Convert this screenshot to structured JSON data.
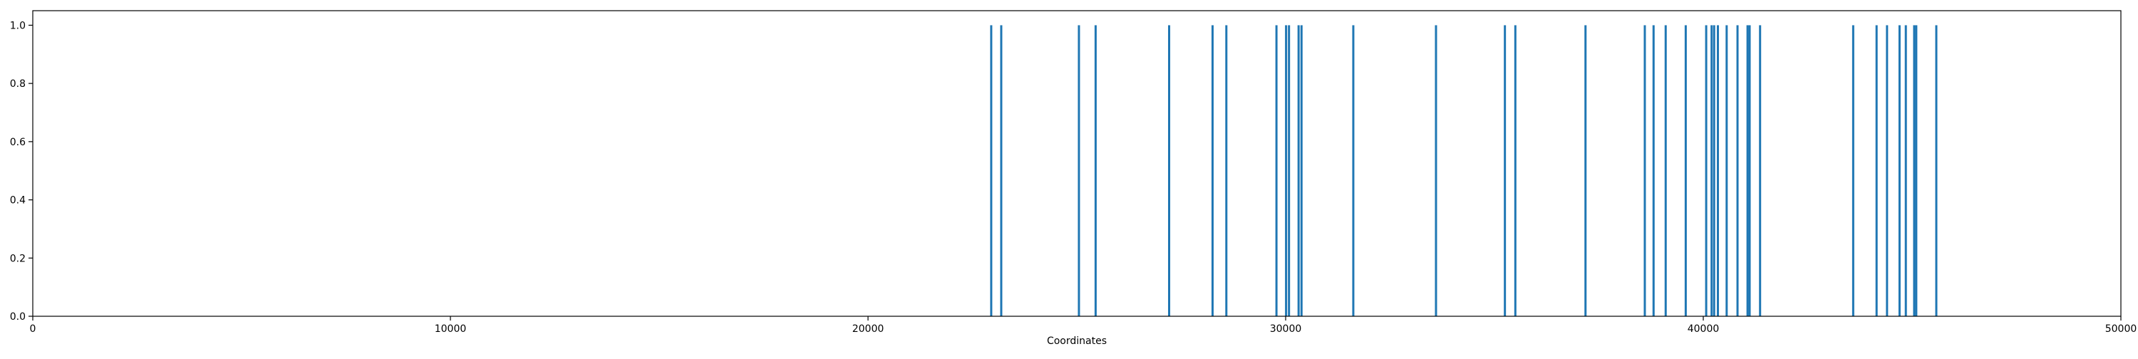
{
  "chart_data": {
    "type": "bar",
    "title": "",
    "xlabel": "Coordinates",
    "ylabel": "",
    "xlim": [
      0,
      50000
    ],
    "ylim": [
      0.0,
      1.05
    ],
    "x_ticks": [
      0,
      10000,
      20000,
      30000,
      40000,
      50000
    ],
    "x_tick_labels": [
      "0",
      "10000",
      "20000",
      "30000",
      "40000",
      "50000"
    ],
    "y_ticks": [
      0.0,
      0.2,
      0.4,
      0.6,
      0.8,
      1.0
    ],
    "y_tick_labels": [
      "0.0",
      "0.2",
      "0.4",
      "0.6",
      "0.8",
      "1.0"
    ],
    "grid": false,
    "color": "#1f77b4",
    "x": [
      22950,
      23190,
      25050,
      25450,
      27210,
      28250,
      28580,
      29780,
      30010,
      30080,
      30310,
      30380,
      31620,
      33600,
      35250,
      35500,
      37180,
      38600,
      38810,
      39100,
      39580,
      40070,
      40200,
      40260,
      40350,
      40560,
      40820,
      41060,
      41110,
      41360,
      43590,
      44150,
      44400,
      44700,
      44850,
      45050,
      45100,
      45580
    ],
    "values": [
      1,
      1,
      1,
      1,
      1,
      1,
      1,
      1,
      1,
      1,
      1,
      1,
      1,
      1,
      1,
      1,
      1,
      1,
      1,
      1,
      1,
      1,
      1,
      1,
      1,
      1,
      1,
      1,
      1,
      1,
      1,
      1,
      1,
      1,
      1,
      1,
      1,
      1
    ]
  }
}
